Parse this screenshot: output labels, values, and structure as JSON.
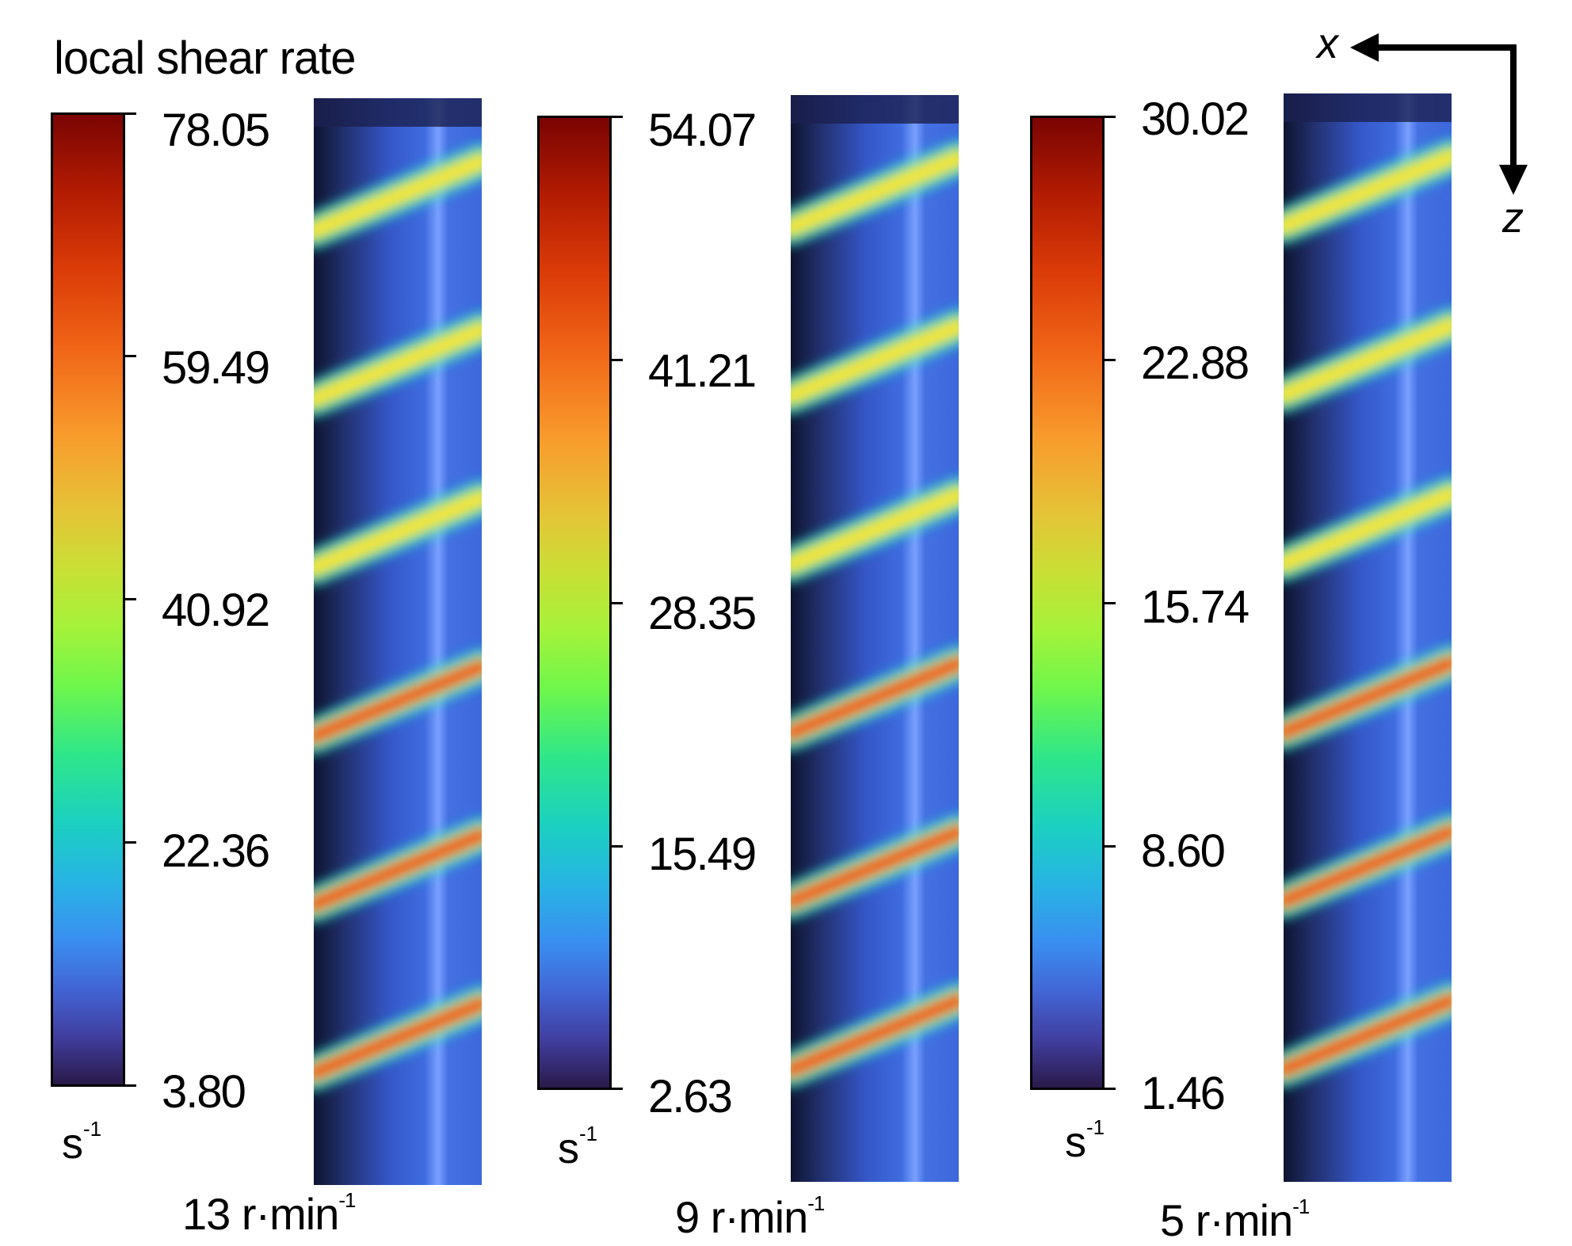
{
  "title": "local shear rate",
  "unit": {
    "base": "s",
    "exp": "-1"
  },
  "panels": [
    {
      "ticks": [
        "78.05",
        "59.49",
        "40.92",
        "22.36",
        "3.80"
      ],
      "speed": "13 r·min",
      "speed_exp": "-1"
    },
    {
      "ticks": [
        "54.07",
        "41.21",
        "28.35",
        "15.49",
        "2.63"
      ],
      "speed": "9 r·min",
      "speed_exp": "-1"
    },
    {
      "ticks": [
        "30.02",
        "22.88",
        "15.74",
        "8.60",
        "1.46"
      ],
      "speed": "5 r·min",
      "speed_exp": "-1"
    }
  ],
  "axes": {
    "x": "x",
    "z": "z"
  },
  "colormap": {
    "top": "#7a0403",
    "bottom": "#2a1a4a",
    "field": "#3f6ce0",
    "band": "#ffe23a"
  }
}
